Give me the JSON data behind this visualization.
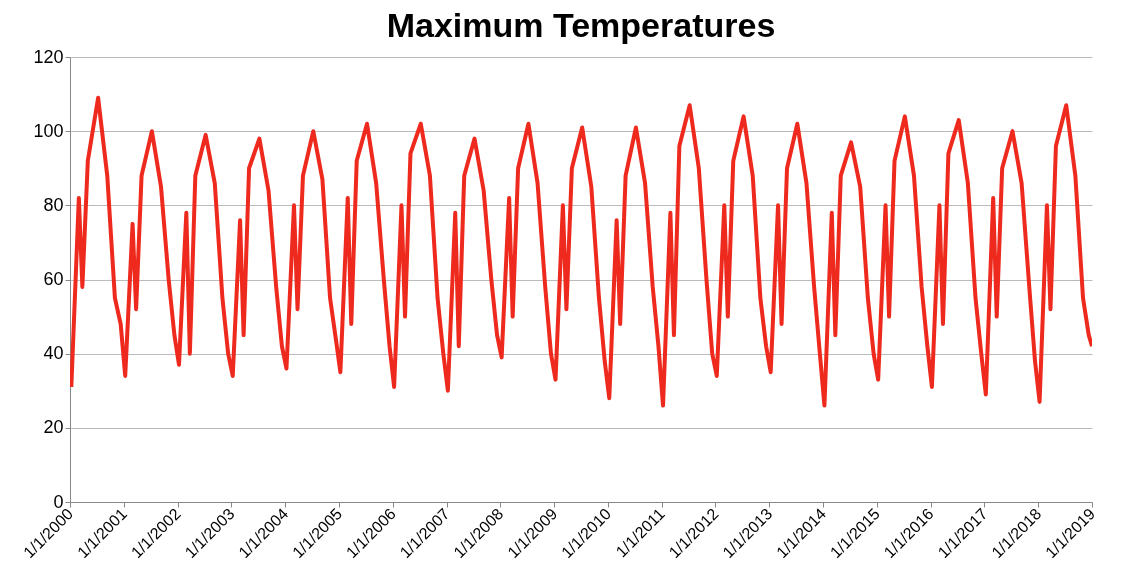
{
  "chart_data": {
    "type": "line",
    "title": "Maximum Temperatures",
    "x": [
      "2000-01-10",
      "2000-03-01",
      "2000-03-25",
      "2000-05-01",
      "2000-07-10",
      "2000-09-10",
      "2000-11-01",
      "2000-12-10",
      "2001-01-10",
      "2001-03-01",
      "2001-03-25",
      "2001-05-01",
      "2001-07-10",
      "2001-09-10",
      "2001-11-01",
      "2001-12-10",
      "2002-01-10",
      "2002-03-01",
      "2002-03-25",
      "2002-05-01",
      "2002-07-10",
      "2002-09-10",
      "2002-11-01",
      "2002-12-10",
      "2003-01-10",
      "2003-03-01",
      "2003-03-25",
      "2003-05-01",
      "2003-07-10",
      "2003-09-10",
      "2003-11-01",
      "2003-12-10",
      "2004-01-10",
      "2004-03-01",
      "2004-03-25",
      "2004-05-01",
      "2004-07-10",
      "2004-09-10",
      "2004-11-01",
      "2004-12-10",
      "2005-01-10",
      "2005-03-01",
      "2005-03-25",
      "2005-05-01",
      "2005-07-10",
      "2005-09-10",
      "2005-11-01",
      "2005-12-10",
      "2006-01-10",
      "2006-03-01",
      "2006-03-25",
      "2006-05-01",
      "2006-07-10",
      "2006-09-10",
      "2006-11-01",
      "2006-12-10",
      "2007-01-10",
      "2007-03-01",
      "2007-03-25",
      "2007-05-01",
      "2007-07-10",
      "2007-09-10",
      "2007-11-01",
      "2007-12-10",
      "2008-01-10",
      "2008-03-01",
      "2008-03-25",
      "2008-05-01",
      "2008-07-10",
      "2008-09-10",
      "2008-11-01",
      "2008-12-10",
      "2009-01-10",
      "2009-03-01",
      "2009-03-25",
      "2009-05-01",
      "2009-07-10",
      "2009-09-10",
      "2009-11-01",
      "2009-12-10",
      "2010-01-10",
      "2010-03-01",
      "2010-03-25",
      "2010-05-01",
      "2010-07-10",
      "2010-09-10",
      "2010-11-01",
      "2010-12-10",
      "2011-01-10",
      "2011-03-01",
      "2011-03-25",
      "2011-05-01",
      "2011-07-10",
      "2011-09-10",
      "2011-11-01",
      "2011-12-10",
      "2012-01-10",
      "2012-03-01",
      "2012-03-25",
      "2012-05-01",
      "2012-07-10",
      "2012-09-10",
      "2012-11-01",
      "2012-12-10",
      "2013-01-10",
      "2013-03-01",
      "2013-03-25",
      "2013-05-01",
      "2013-07-10",
      "2013-09-10",
      "2013-11-01",
      "2013-12-10",
      "2014-01-10",
      "2014-03-01",
      "2014-03-25",
      "2014-05-01",
      "2014-07-10",
      "2014-09-10",
      "2014-11-01",
      "2014-12-10",
      "2015-01-10",
      "2015-03-01",
      "2015-03-25",
      "2015-05-01",
      "2015-07-10",
      "2015-09-10",
      "2015-11-01",
      "2015-12-10",
      "2016-01-10",
      "2016-03-01",
      "2016-03-25",
      "2016-05-01",
      "2016-07-10",
      "2016-09-10",
      "2016-11-01",
      "2016-12-10",
      "2017-01-10",
      "2017-03-01",
      "2017-03-25",
      "2017-05-01",
      "2017-07-10",
      "2017-09-10",
      "2017-11-01",
      "2017-12-10",
      "2018-01-10",
      "2018-03-01",
      "2018-03-25",
      "2018-05-01",
      "2018-07-10",
      "2018-09-10",
      "2018-11-01",
      "2018-12-10",
      "2019-01-01"
    ],
    "series": [
      {
        "color": "#ee2a1e",
        "values": [
          31,
          82,
          58,
          92,
          109,
          88,
          55,
          48,
          34,
          75,
          52,
          88,
          100,
          85,
          60,
          45,
          37,
          78,
          40,
          88,
          99,
          86,
          55,
          40,
          34,
          76,
          45,
          90,
          98,
          84,
          58,
          42,
          36,
          80,
          52,
          88,
          100,
          87,
          55,
          44,
          35,
          82,
          48,
          92,
          102,
          86,
          60,
          42,
          31,
          80,
          50,
          94,
          102,
          88,
          55,
          40,
          30,
          78,
          42,
          88,
          98,
          84,
          60,
          45,
          39,
          82,
          50,
          90,
          102,
          86,
          58,
          40,
          33,
          80,
          52,
          90,
          101,
          85,
          55,
          38,
          28,
          76,
          48,
          88,
          101,
          86,
          58,
          42,
          26,
          78,
          45,
          96,
          107,
          90,
          60,
          40,
          34,
          80,
          50,
          92,
          104,
          88,
          55,
          42,
          35,
          80,
          48,
          90,
          102,
          86,
          58,
          40,
          26,
          78,
          45,
          88,
          97,
          85,
          55,
          40,
          33,
          80,
          50,
          92,
          104,
          88,
          58,
          42,
          31,
          80,
          48,
          94,
          103,
          86,
          55,
          40,
          29,
          82,
          50,
          90,
          100,
          86,
          58,
          38,
          27,
          80,
          52,
          96,
          107,
          88,
          55,
          45,
          42
        ]
      }
    ],
    "xlim": [
      "2000-01-01",
      "2019-01-01"
    ],
    "xticks": [
      {
        "value": "2000-01-01",
        "label": "1/1/2000"
      },
      {
        "value": "2001-01-01",
        "label": "1/1/2001"
      },
      {
        "value": "2002-01-01",
        "label": "1/1/2002"
      },
      {
        "value": "2003-01-01",
        "label": "1/1/2003"
      },
      {
        "value": "2004-01-01",
        "label": "1/1/2004"
      },
      {
        "value": "2005-01-01",
        "label": "1/1/2005"
      },
      {
        "value": "2006-01-01",
        "label": "1/1/2006"
      },
      {
        "value": "2007-01-01",
        "label": "1/1/2007"
      },
      {
        "value": "2008-01-01",
        "label": "1/1/2008"
      },
      {
        "value": "2009-01-01",
        "label": "1/1/2009"
      },
      {
        "value": "2010-01-01",
        "label": "1/1/2010"
      },
      {
        "value": "2011-01-01",
        "label": "1/1/2011"
      },
      {
        "value": "2012-01-01",
        "label": "1/1/2012"
      },
      {
        "value": "2013-01-01",
        "label": "1/1/2013"
      },
      {
        "value": "2014-01-01",
        "label": "1/1/2014"
      },
      {
        "value": "2015-01-01",
        "label": "1/1/2015"
      },
      {
        "value": "2016-01-01",
        "label": "1/1/2016"
      },
      {
        "value": "2017-01-01",
        "label": "1/1/2017"
      },
      {
        "value": "2018-01-01",
        "label": "1/1/2018"
      },
      {
        "value": "2019-01-01",
        "label": "1/1/2019"
      }
    ],
    "ylim": [
      0,
      120
    ],
    "yticks": [
      0,
      20,
      40,
      60,
      80,
      100,
      120
    ],
    "grid": "y",
    "legend": false,
    "marker": "none",
    "line_style": "solid"
  }
}
